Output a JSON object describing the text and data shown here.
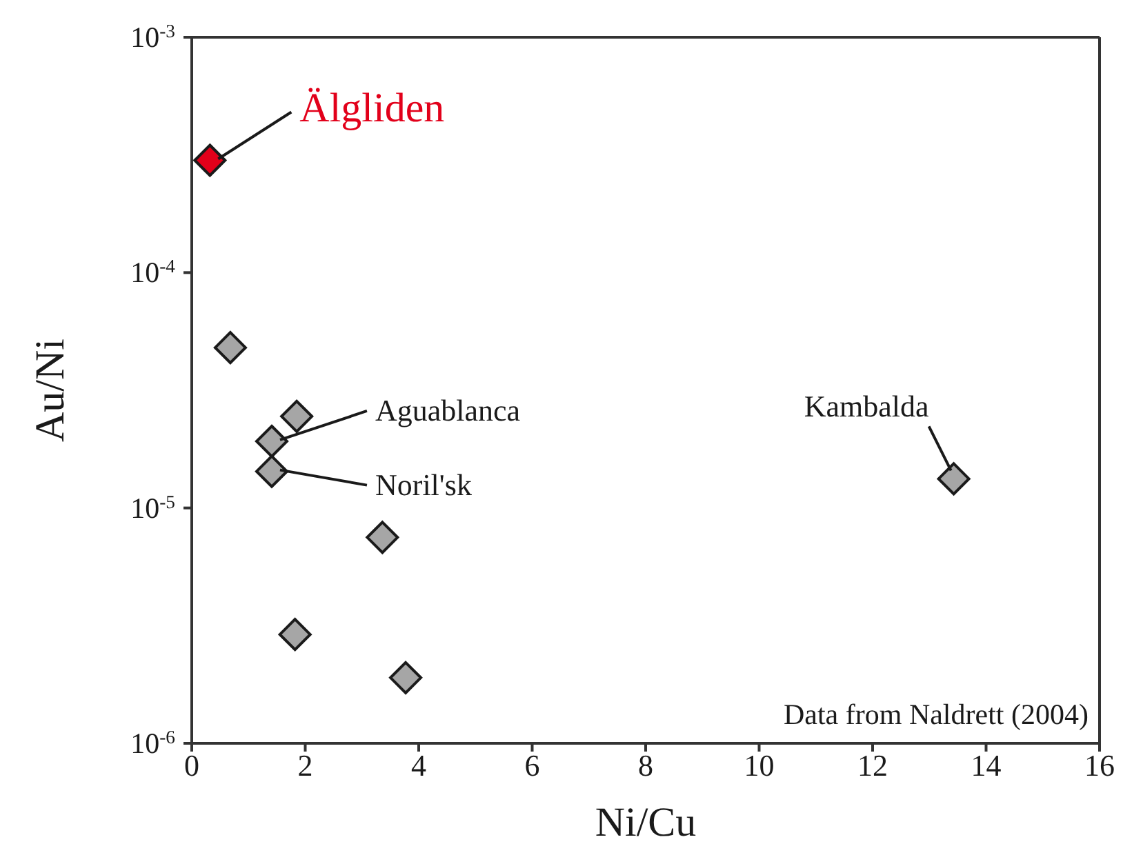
{
  "chart_data": {
    "type": "scatter",
    "xlabel": "Ni/Cu",
    "ylabel": "Au/Ni",
    "log": "y",
    "marker": "diamond",
    "xlim": [
      0,
      16
    ],
    "xticks": [
      0,
      2,
      4,
      6,
      8,
      10,
      12,
      14,
      16
    ],
    "ylim": [
      1e-06,
      0.001
    ],
    "yticks": [
      {
        "value": 1e-06,
        "label": "10$^{-6}$"
      },
      {
        "value": 1e-05,
        "label": "10$^{-5}$"
      },
      {
        "value": 0.0001,
        "label": "10$^{-4}$"
      },
      {
        "value": 0.001,
        "label": "10$^{-3}$"
      }
    ],
    "series": [
      {
        "color": "#e2001a",
        "x": [
          0.32
        ],
        "values": [
          0.0003
        ]
      },
      {
        "color": "#a6a6a6",
        "x": [
          0.68,
          1.85,
          1.41,
          1.41,
          3.36,
          1.82,
          3.77,
          13.43
        ],
        "values": [
          4.8e-05,
          2.45e-05,
          1.92e-05,
          1.43e-05,
          7.5e-06,
          2.9e-06,
          1.9e-06,
          1.33e-05
        ]
      }
    ],
    "annotations": [
      {
        "text": "Älgliden",
        "x": 0.32,
        "y": 0.0003
      },
      {
        "text": "Aguablanca",
        "x": 1.41,
        "y": 1.92e-05
      },
      {
        "text": "Noril'sk",
        "x": 1.41,
        "y": 1.43e-05
      },
      {
        "text": "Kambalda",
        "x": 13.43,
        "y": 1.33e-05
      },
      "Data from Naldrett (2004)"
    ]
  }
}
